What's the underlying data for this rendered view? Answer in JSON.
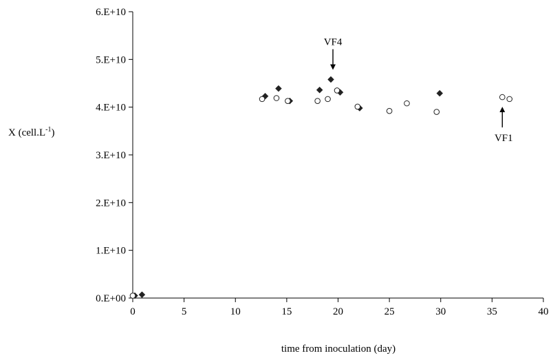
{
  "chart_data": {
    "type": "scatter",
    "title": "",
    "xlabel": "time from inoculation (day)",
    "ylabel": {
      "text": "X (cell.L",
      "superscript": "-1",
      "close": ")"
    },
    "xlim": [
      0,
      40
    ],
    "ylim": [
      0,
      60000000000
    ],
    "x_ticks": [
      0,
      5,
      10,
      15,
      20,
      25,
      30,
      35,
      40
    ],
    "x_tick_labels": [
      "0",
      "5",
      "10",
      "15",
      "20",
      "25",
      "30",
      "35",
      "40"
    ],
    "y_ticks": [
      0,
      10000000000,
      20000000000,
      30000000000,
      40000000000,
      50000000000,
      60000000000
    ],
    "y_tick_labels": [
      "0.E+00",
      "1.E+10",
      "2.E+10",
      "3.E+10",
      "4.E+10",
      "5.E+10",
      "6.E+10"
    ],
    "grid": false,
    "series": [
      {
        "marker": "diamond-filled",
        "color": "#222222",
        "points": [
          {
            "x": 0.2,
            "y": 500000000
          },
          {
            "x": 0.9,
            "y": 700000000
          },
          {
            "x": 12.9,
            "y": 42300000000
          },
          {
            "x": 14.2,
            "y": 43900000000
          },
          {
            "x": 15.3,
            "y": 41300000000
          },
          {
            "x": 18.2,
            "y": 43600000000
          },
          {
            "x": 19.3,
            "y": 45800000000
          },
          {
            "x": 20.2,
            "y": 43100000000
          },
          {
            "x": 22.1,
            "y": 39800000000
          },
          {
            "x": 29.9,
            "y": 42900000000
          }
        ]
      },
      {
        "marker": "circle-open",
        "color": "#222222",
        "points": [
          {
            "x": 0.0,
            "y": 500000000
          },
          {
            "x": 12.6,
            "y": 41700000000
          },
          {
            "x": 14.0,
            "y": 41900000000
          },
          {
            "x": 15.1,
            "y": 41300000000
          },
          {
            "x": 18.0,
            "y": 41300000000
          },
          {
            "x": 19.0,
            "y": 41700000000
          },
          {
            "x": 19.9,
            "y": 43500000000
          },
          {
            "x": 21.9,
            "y": 40100000000
          },
          {
            "x": 25.0,
            "y": 39200000000
          },
          {
            "x": 26.7,
            "y": 40800000000
          },
          {
            "x": 29.6,
            "y": 39000000000
          },
          {
            "x": 36.0,
            "y": 42100000000
          },
          {
            "x": 36.7,
            "y": 41700000000
          }
        ]
      }
    ],
    "annotations": [
      {
        "text": "VF4",
        "arrow": "down",
        "x": 19.5,
        "y": 45800000000
      },
      {
        "text": "VF1",
        "arrow": "up",
        "x": 36.0,
        "y": 42100000000
      }
    ]
  }
}
